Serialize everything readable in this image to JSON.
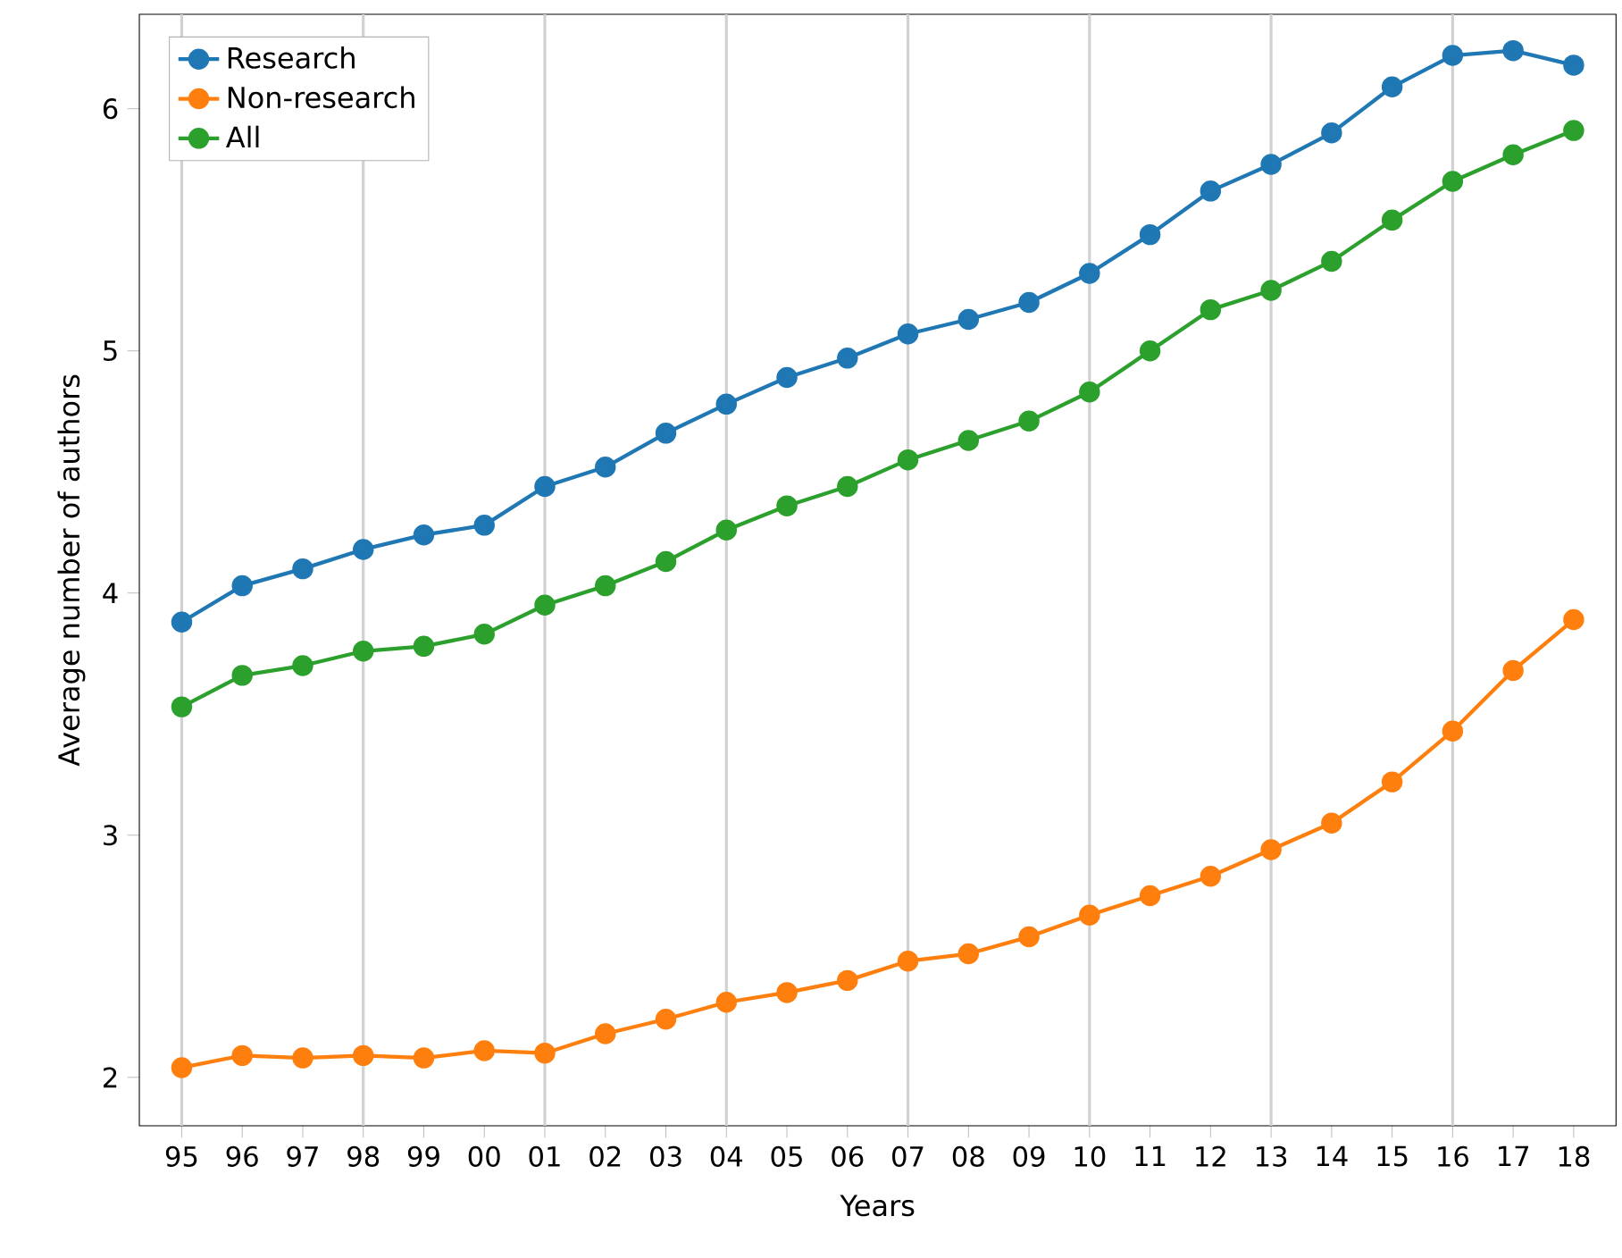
{
  "chart_data": {
    "type": "line",
    "xlabel": "Years",
    "ylabel": "Average number of authors",
    "categories": [
      "95",
      "96",
      "97",
      "98",
      "99",
      "00",
      "01",
      "02",
      "03",
      "04",
      "05",
      "06",
      "07",
      "08",
      "09",
      "10",
      "11",
      "12",
      "13",
      "14",
      "15",
      "16",
      "17",
      "18"
    ],
    "series": [
      {
        "name": "Research",
        "color": "#1f77b4",
        "values": [
          3.88,
          4.03,
          4.1,
          4.18,
          4.24,
          4.28,
          4.44,
          4.52,
          4.66,
          4.78,
          4.89,
          4.97,
          5.07,
          5.13,
          5.2,
          5.32,
          5.48,
          5.66,
          5.77,
          5.9,
          6.09,
          6.22,
          6.24,
          6.18
        ]
      },
      {
        "name": "Non-research",
        "color": "#ff7f0e",
        "values": [
          2.04,
          2.09,
          2.08,
          2.09,
          2.08,
          2.11,
          2.1,
          2.18,
          2.24,
          2.31,
          2.35,
          2.4,
          2.48,
          2.51,
          2.58,
          2.67,
          2.75,
          2.83,
          2.94,
          3.05,
          3.22,
          3.43,
          3.68,
          3.89
        ]
      },
      {
        "name": "All",
        "color": "#2ca02c",
        "values": [
          3.53,
          3.66,
          3.7,
          3.76,
          3.78,
          3.83,
          3.95,
          4.03,
          4.13,
          4.26,
          4.36,
          4.44,
          4.55,
          4.63,
          4.71,
          4.83,
          5.0,
          5.17,
          5.25,
          5.37,
          5.54,
          5.7,
          5.81,
          5.91
        ]
      }
    ],
    "ylim": [
      1.8,
      6.39
    ],
    "yticks": [
      2,
      3,
      4,
      5,
      6
    ],
    "grid": "x",
    "legend": "top left",
    "marker": "circle",
    "line_style": "solid"
  }
}
